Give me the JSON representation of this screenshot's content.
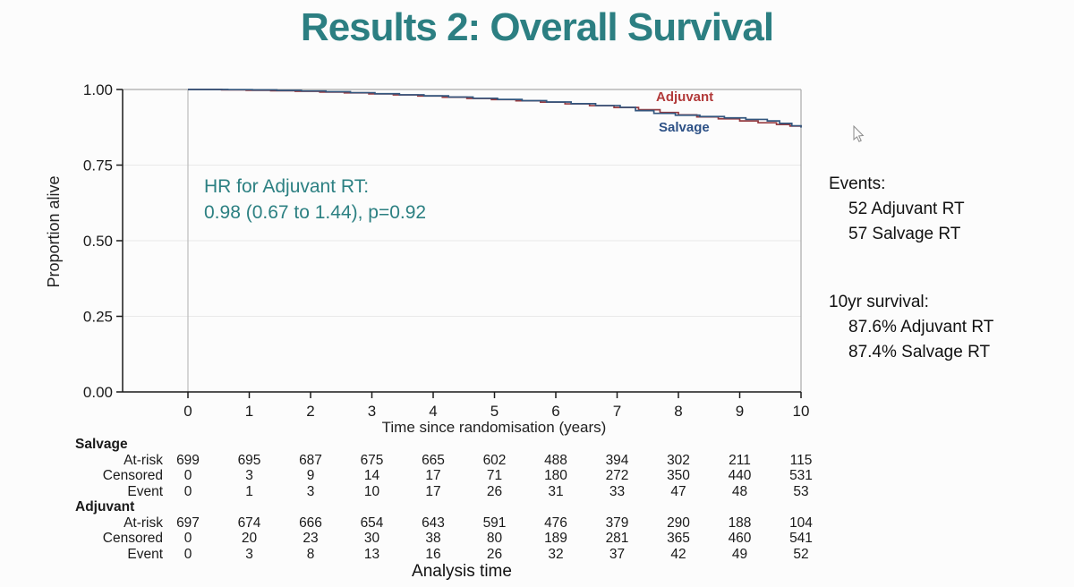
{
  "slide": {
    "title": "Results 2: Overall Survival"
  },
  "annotation": {
    "line1": "HR for Adjuvant RT:",
    "line2": "0.98 (0.67 to 1.44), p=0.92"
  },
  "side_panel": {
    "events_heading": "Events:",
    "events": [
      "52 Adjuvant RT",
      "57 Salvage RT"
    ],
    "survival_heading": "10yr survival:",
    "survival": [
      "87.6% Adjuvant RT",
      "87.4% Salvage RT"
    ]
  },
  "chart_data": {
    "type": "line",
    "subtype": "kaplan-meier-step",
    "title": "",
    "xlabel": "Time since randomisation (years)",
    "ylabel": "Proportion alive",
    "xlim": [
      0,
      10
    ],
    "ylim": [
      0,
      1
    ],
    "xticks": [
      0,
      1,
      2,
      3,
      4,
      5,
      6,
      7,
      8,
      9,
      10
    ],
    "ytick_labels": [
      "0.00",
      "0.25",
      "0.50",
      "0.75",
      "1.00"
    ],
    "ytick_values": [
      0,
      0.25,
      0.5,
      0.75,
      1
    ],
    "grid": "horizontal-light",
    "legend_position": "inline-right-of-curves",
    "colors": {
      "adjuvant": "#963b40",
      "salvage": "#33567e",
      "adjuvant_label": "#b23a3a",
      "salvage_label": "#2d5186",
      "teal_accent": "#2c8082",
      "grid": "#e9e9e9",
      "border": "#a9a9a9",
      "axis": "#1a1a1a",
      "zero_refline": "#bcbcbc"
    },
    "series": [
      {
        "name": "Adjuvant",
        "points": [
          [
            0,
            1.0
          ],
          [
            0.55,
            0.999
          ],
          [
            0.95,
            0.9975
          ],
          [
            1.35,
            0.996
          ],
          [
            1.75,
            0.994
          ],
          [
            2.15,
            0.9915
          ],
          [
            2.55,
            0.989
          ],
          [
            2.95,
            0.9855
          ],
          [
            3.35,
            0.982
          ],
          [
            3.75,
            0.9785
          ],
          [
            4.15,
            0.9745
          ],
          [
            4.55,
            0.9705
          ],
          [
            4.95,
            0.9665
          ],
          [
            5.35,
            0.9625
          ],
          [
            5.75,
            0.958
          ],
          [
            6.15,
            0.9525
          ],
          [
            6.55,
            0.9465
          ],
          [
            6.95,
            0.9405
          ],
          [
            7.35,
            0.933
          ],
          [
            7.7,
            0.924
          ],
          [
            8.0,
            0.916
          ],
          [
            8.3,
            0.9095
          ],
          [
            8.65,
            0.903
          ],
          [
            9.0,
            0.896
          ],
          [
            9.3,
            0.89
          ],
          [
            9.6,
            0.884
          ],
          [
            9.82,
            0.879
          ],
          [
            10,
            0.876
          ]
        ]
      },
      {
        "name": "Salvage",
        "points": [
          [
            0,
            1.0
          ],
          [
            0.65,
            0.9995
          ],
          [
            1.05,
            0.9985
          ],
          [
            1.45,
            0.997
          ],
          [
            1.85,
            0.995
          ],
          [
            2.25,
            0.9925
          ],
          [
            2.65,
            0.9895
          ],
          [
            3.05,
            0.986
          ],
          [
            3.45,
            0.9825
          ],
          [
            3.85,
            0.979
          ],
          [
            4.25,
            0.975
          ],
          [
            4.65,
            0.971
          ],
          [
            5.05,
            0.967
          ],
          [
            5.45,
            0.963
          ],
          [
            5.85,
            0.9585
          ],
          [
            6.25,
            0.953
          ],
          [
            6.65,
            0.947
          ],
          [
            7.05,
            0.941
          ],
          [
            7.3,
            0.93
          ],
          [
            7.6,
            0.921
          ],
          [
            7.95,
            0.915
          ],
          [
            8.35,
            0.9105
          ],
          [
            8.75,
            0.906
          ],
          [
            9.1,
            0.901
          ],
          [
            9.45,
            0.896
          ],
          [
            9.65,
            0.888
          ],
          [
            9.85,
            0.88
          ],
          [
            10,
            0.874
          ]
        ]
      }
    ],
    "summary": {
      "hr_text": "0.98 (0.67 to 1.44), p=0.92",
      "events_adjuvant": 52,
      "events_salvage": 57,
      "survival_10yr_adjuvant_pct": 87.6,
      "survival_10yr_salvage_pct": 87.4
    }
  },
  "risk_table": {
    "bottom_label": "Analysis time",
    "times": [
      0,
      1,
      2,
      3,
      4,
      5,
      6,
      7,
      8,
      9,
      10
    ],
    "groups": [
      {
        "name": "Salvage",
        "rows": [
          {
            "label": "At-risk",
            "values": [
              699,
              695,
              687,
              675,
              665,
              602,
              488,
              394,
              302,
              211,
              115
            ]
          },
          {
            "label": "Censored",
            "values": [
              0,
              3,
              9,
              14,
              17,
              71,
              180,
              272,
              350,
              440,
              531
            ]
          },
          {
            "label": "Event",
            "values": [
              0,
              1,
              3,
              10,
              17,
              26,
              31,
              33,
              47,
              48,
              53
            ]
          }
        ]
      },
      {
        "name": "Adjuvant",
        "rows": [
          {
            "label": "At-risk",
            "values": [
              697,
              674,
              666,
              654,
              643,
              591,
              476,
              379,
              290,
              188,
              104
            ]
          },
          {
            "label": "Censored",
            "values": [
              0,
              20,
              23,
              30,
              38,
              80,
              189,
              281,
              365,
              460,
              541
            ]
          },
          {
            "label": "Event",
            "values": [
              0,
              3,
              8,
              13,
              16,
              26,
              32,
              37,
              42,
              49,
              52
            ]
          }
        ]
      }
    ]
  }
}
